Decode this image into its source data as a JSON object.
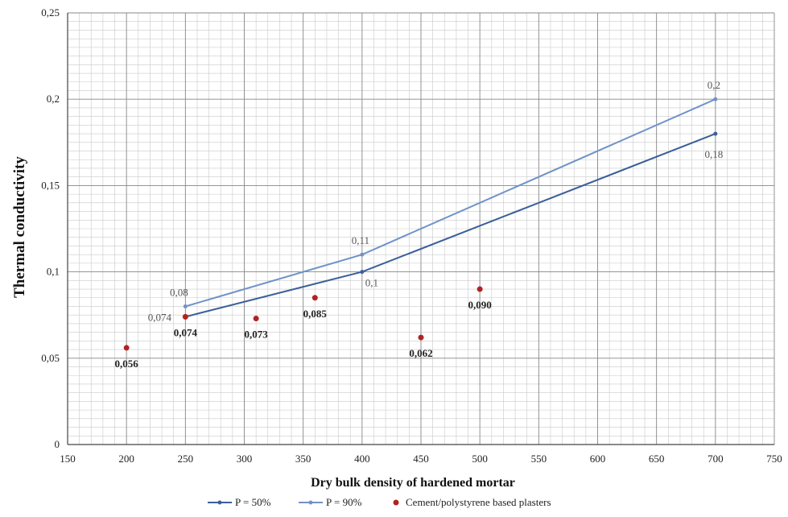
{
  "chart_data": {
    "type": "line",
    "xlabel": "Dry bulk density of hardened mortar",
    "ylabel": "Thermal conductivity",
    "xlim": [
      150,
      750
    ],
    "ylim": [
      0,
      0.25
    ],
    "x_ticks": [
      150,
      200,
      250,
      300,
      350,
      400,
      450,
      500,
      550,
      600,
      650,
      700,
      750
    ],
    "x_tick_labels": [
      "150",
      "200",
      "250",
      "300",
      "350",
      "400",
      "450",
      "500",
      "550",
      "600",
      "650",
      "700",
      "750"
    ],
    "y_ticks": [
      0,
      0.05,
      0.1,
      0.15,
      0.2,
      0.25
    ],
    "y_tick_labels": [
      "0",
      "0,05",
      "0,1",
      "0,15",
      "0,2",
      "0,25"
    ],
    "grid": true,
    "legend_position": "bottom",
    "series": [
      {
        "name": "P = 50%",
        "kind": "line",
        "color": "#3a5f9a",
        "x": [
          250,
          400,
          700
        ],
        "y": [
          0.074,
          0.1,
          0.18
        ],
        "labels": [
          "0,074",
          "0,1",
          "0,18"
        ]
      },
      {
        "name": "P = 90%",
        "kind": "line",
        "color": "#6f93c8",
        "x": [
          250,
          400,
          700
        ],
        "y": [
          0.08,
          0.11,
          0.2
        ],
        "labels": [
          "0,08",
          "0,11",
          "0,2"
        ]
      },
      {
        "name": "Cement/polystyrene based plasters",
        "kind": "scatter",
        "color": "#b22222",
        "x": [
          200,
          250,
          310,
          360,
          450,
          500
        ],
        "y": [
          0.056,
          0.074,
          0.073,
          0.085,
          0.062,
          0.09
        ],
        "labels": [
          "0,056",
          "0,074",
          "0,073",
          "0,085",
          "0,062",
          "0,090"
        ]
      }
    ]
  }
}
